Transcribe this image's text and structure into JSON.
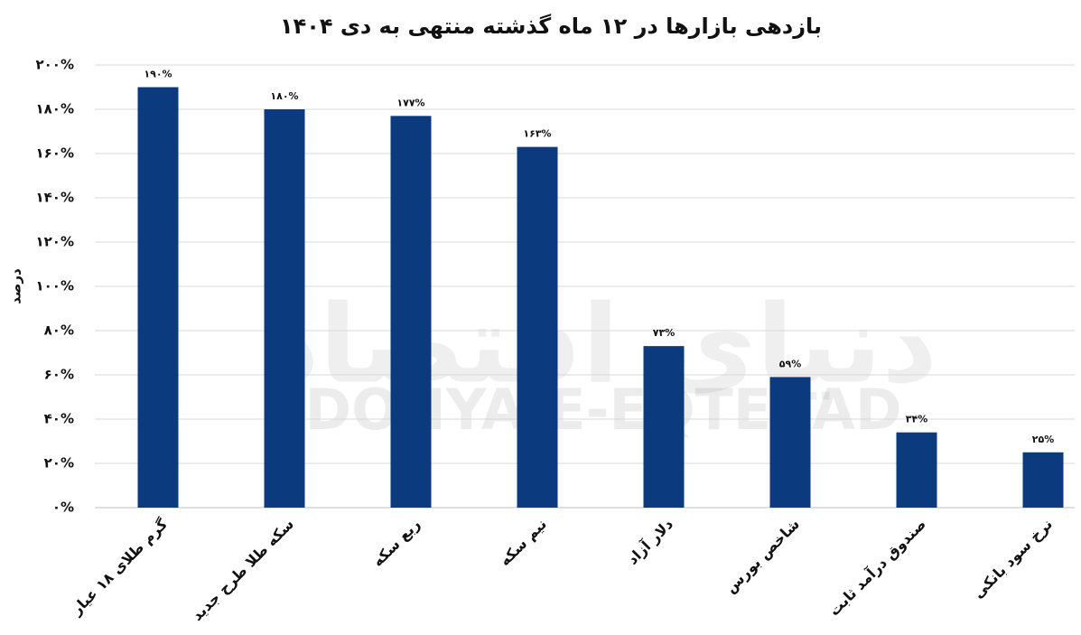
{
  "chart_data": {
    "type": "bar",
    "title": "بازدهی بازارها در ۱۲ ماه گذشته منتهی به دی ۱۴۰۴",
    "y_label": "درصد",
    "watermark_logo": "دنیای اقتصاد",
    "watermark": "DONYA-E-EQTESAD",
    "categories": [
      "گرم طلای ۱۸ عیار",
      "سکه طلا طرح جدید",
      "ربع سکه",
      "نیم سکه",
      "دلار آزاد",
      "شاخص بورس",
      "صندوق درآمد ثابت",
      "نرخ سود بانکی"
    ],
    "values": [
      190,
      180,
      177,
      163,
      73,
      59,
      34,
      25
    ],
    "value_labels": [
      "۱۹۰%",
      "۱۸۰%",
      "۱۷۷%",
      "۱۶۳%",
      "۷۳%",
      "۵۹%",
      "۳۴%",
      "۲۵%"
    ],
    "color": "#0b3a7e",
    "ylim": [
      0,
      200
    ],
    "yticks": [
      {
        "value": 0,
        "label": "۰%"
      },
      {
        "value": 20,
        "label": "۲۰%"
      },
      {
        "value": 40,
        "label": "۴۰%"
      },
      {
        "value": 60,
        "label": "۶۰%"
      },
      {
        "value": 80,
        "label": "۸۰%"
      },
      {
        "value": 100,
        "label": "۱۰۰%"
      },
      {
        "value": 120,
        "label": "۱۲۰%"
      },
      {
        "value": 140,
        "label": "۱۴۰%"
      },
      {
        "value": 160,
        "label": "۱۶۰%"
      },
      {
        "value": 180,
        "label": "۱۸۰%"
      },
      {
        "value": 200,
        "label": "۲۰۰%"
      }
    ],
    "grid": true
  }
}
